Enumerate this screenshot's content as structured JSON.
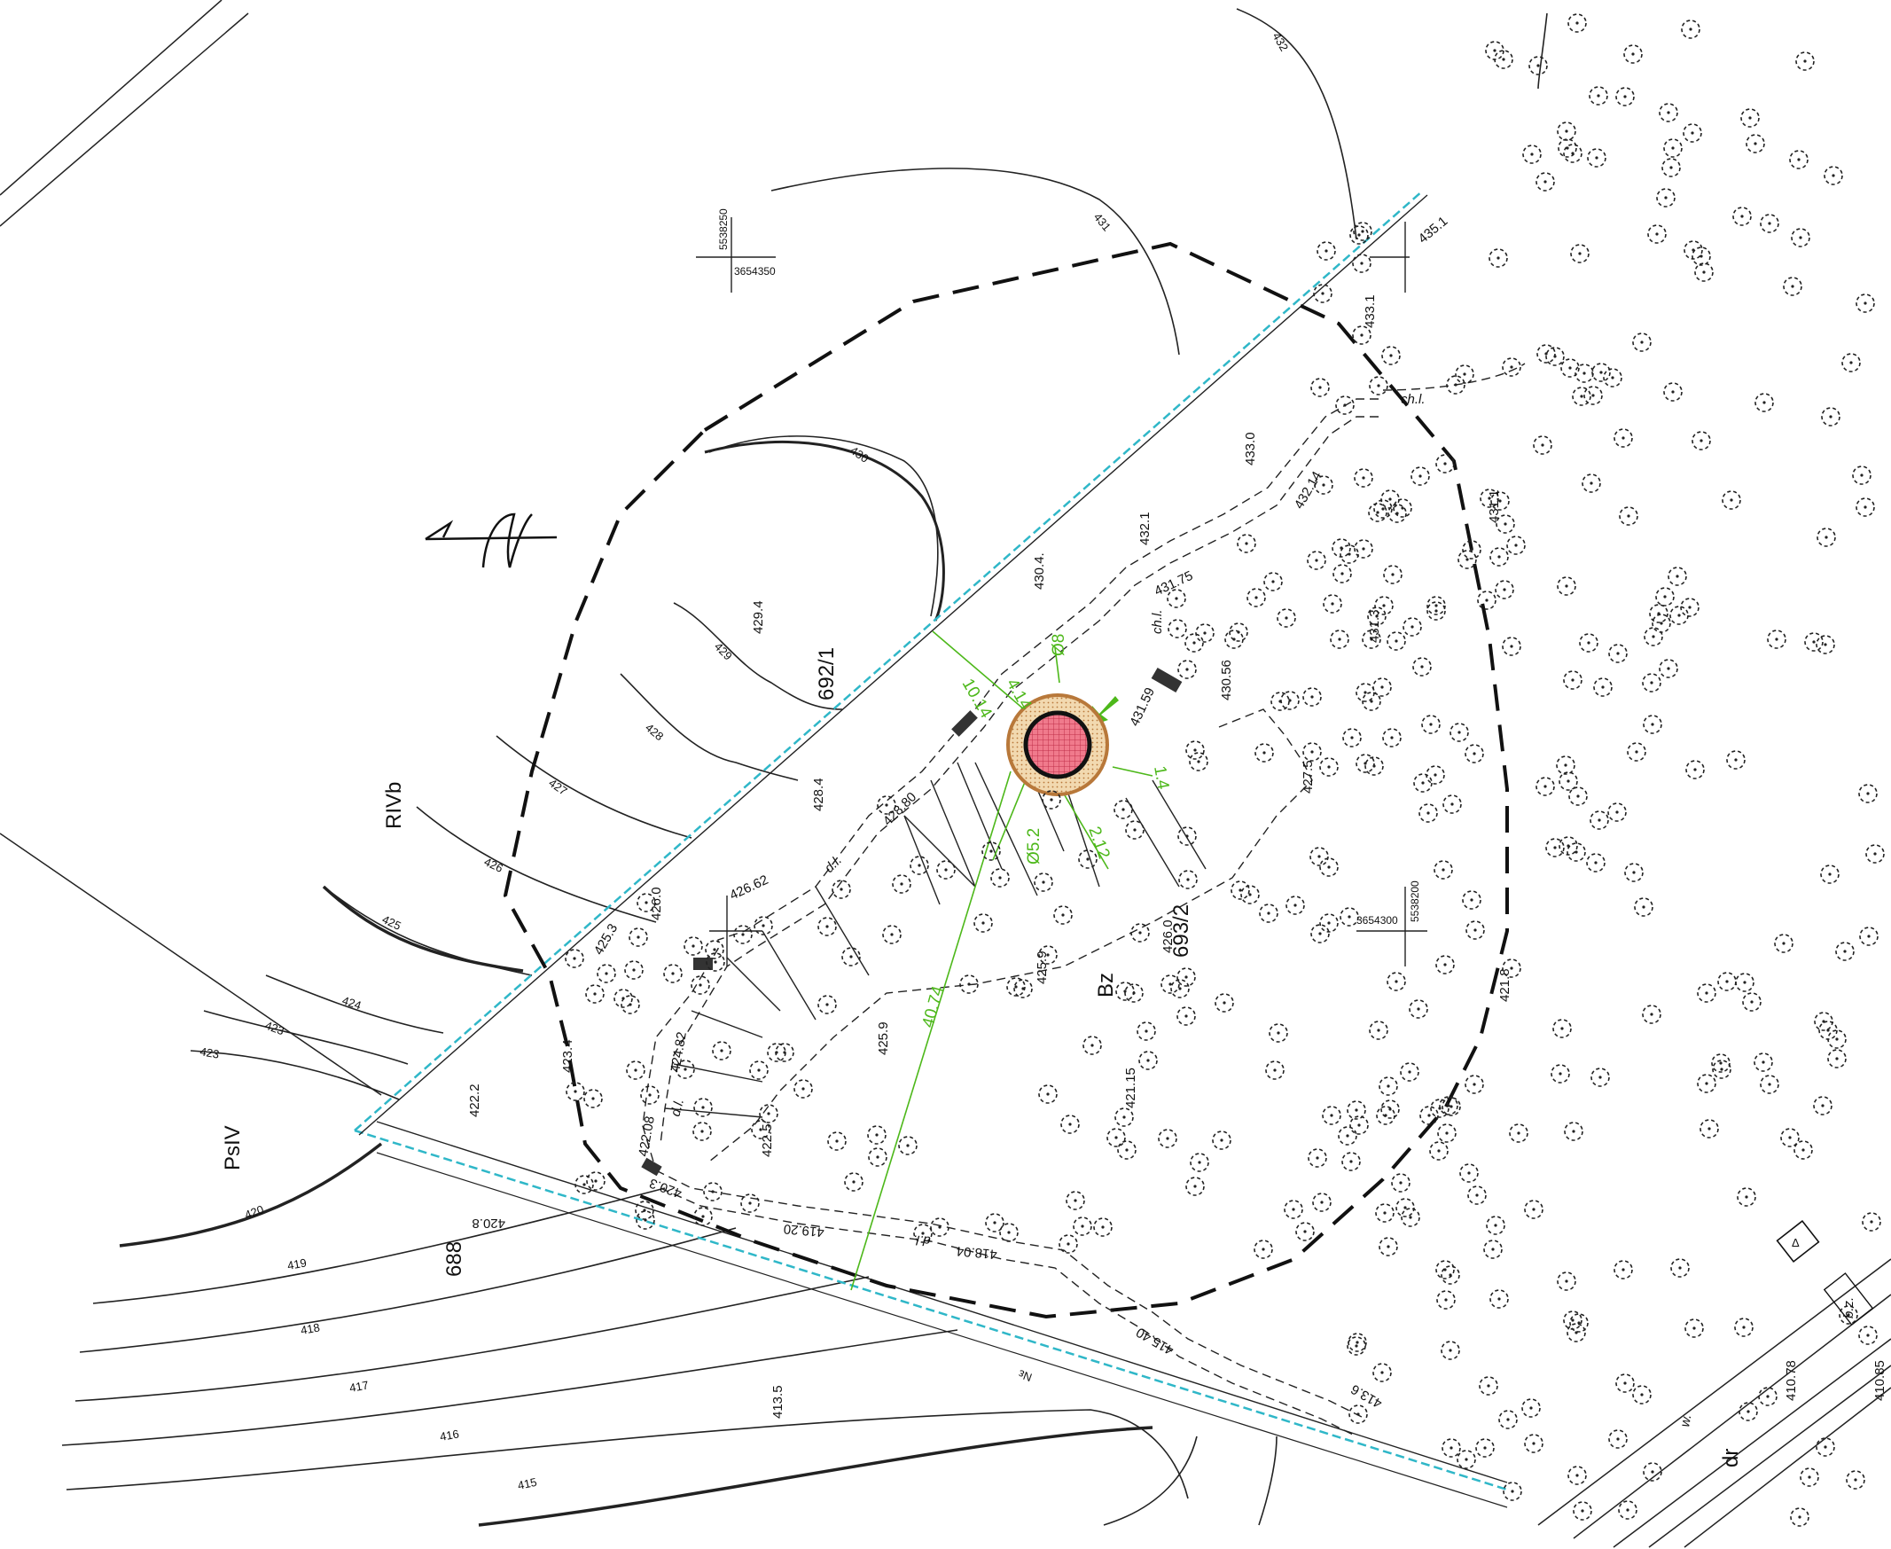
{
  "plot_labels": {
    "parcel_692_1": "692/1",
    "parcel_693_2": "693/2",
    "parcel_688": "688",
    "soil_RIVb": "RIVb",
    "soil_PsIV": "PsIV",
    "bz": "Bz"
  },
  "grid_coordinates": [
    {
      "n": "5538250",
      "e": "3654350"
    },
    {
      "n": "5538200",
      "e": "3654300"
    }
  ],
  "contour_labels": [
    "432",
    "431",
    "430",
    "429",
    "428",
    "427",
    "426",
    "425",
    "424",
    "423",
    "423",
    "420",
    "419",
    "418",
    "417",
    "416",
    "415",
    "Nε"
  ],
  "elevations": [
    "433.1",
    "433.0",
    "432.1",
    "432.14",
    "431.75",
    "431.59",
    "431.3",
    "431.1",
    "430.56",
    "430.4.",
    "429.4",
    "428.4",
    "428.80",
    "427.5",
    "426.62",
    "426.0",
    "426.0",
    "425.9",
    "425.9",
    "425.3",
    "424.82",
    "423.4",
    "422.2",
    "422.5",
    "422.08",
    "421.8",
    "421.15",
    "420.8",
    "420.3",
    "419.20",
    "418.04",
    "415.40",
    "413.5",
    "413.6",
    "410.78",
    "410.85",
    "435.1"
  ],
  "feature_labels": [
    "ch.l.",
    "ch.l.",
    "d.l.",
    "d.l.",
    "d.l.",
    "w.",
    "dr",
    "b.z."
  ],
  "dimensions": {
    "d1": "10.14",
    "d2": "40.74",
    "d3": "Ø5.2",
    "d4": "2.12",
    "d5": "Ø8",
    "d6": "4.14",
    "d7": "1.4"
  },
  "north_symbol": "N",
  "benchmark_symbol": "Δ",
  "colors": {
    "boundary": "#2fb7c8",
    "dimensions": "#4db81a",
    "well_fill": "#e8607a",
    "well_ring": "#c87a3a"
  }
}
